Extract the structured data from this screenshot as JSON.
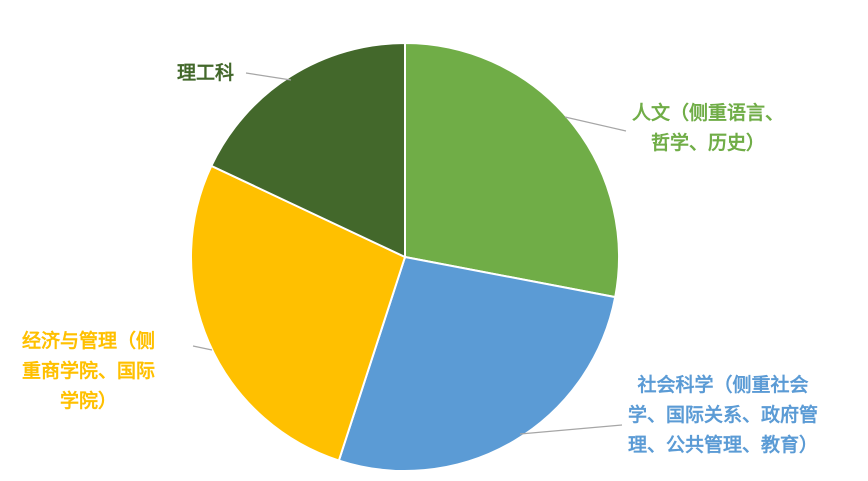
{
  "chart_data": {
    "type": "pie",
    "slices": [
      {
        "label_lines": [
          "人文（侧重语言、",
          "哲学、历史）"
        ],
        "value": 28,
        "color": "#70ad47"
      },
      {
        "label_lines": [
          "社会科学（侧重社会",
          "学、国际关系、政府管",
          "理、公共管理、教育）"
        ],
        "value": 27,
        "color": "#5b9bd5"
      },
      {
        "label_lines": [
          "经济与管理（侧",
          "重商学院、国际",
          "学院）"
        ],
        "value": 27,
        "color": "#ffc000"
      },
      {
        "label_lines": [
          "理工科"
        ],
        "value": 18,
        "color": "#43682b"
      }
    ],
    "start_angle_deg": 0,
    "direction": "clockwise",
    "slice_border_color": "#ffffff",
    "leader_line_color": "#a6a6a6",
    "legend": "none",
    "grid": false
  }
}
